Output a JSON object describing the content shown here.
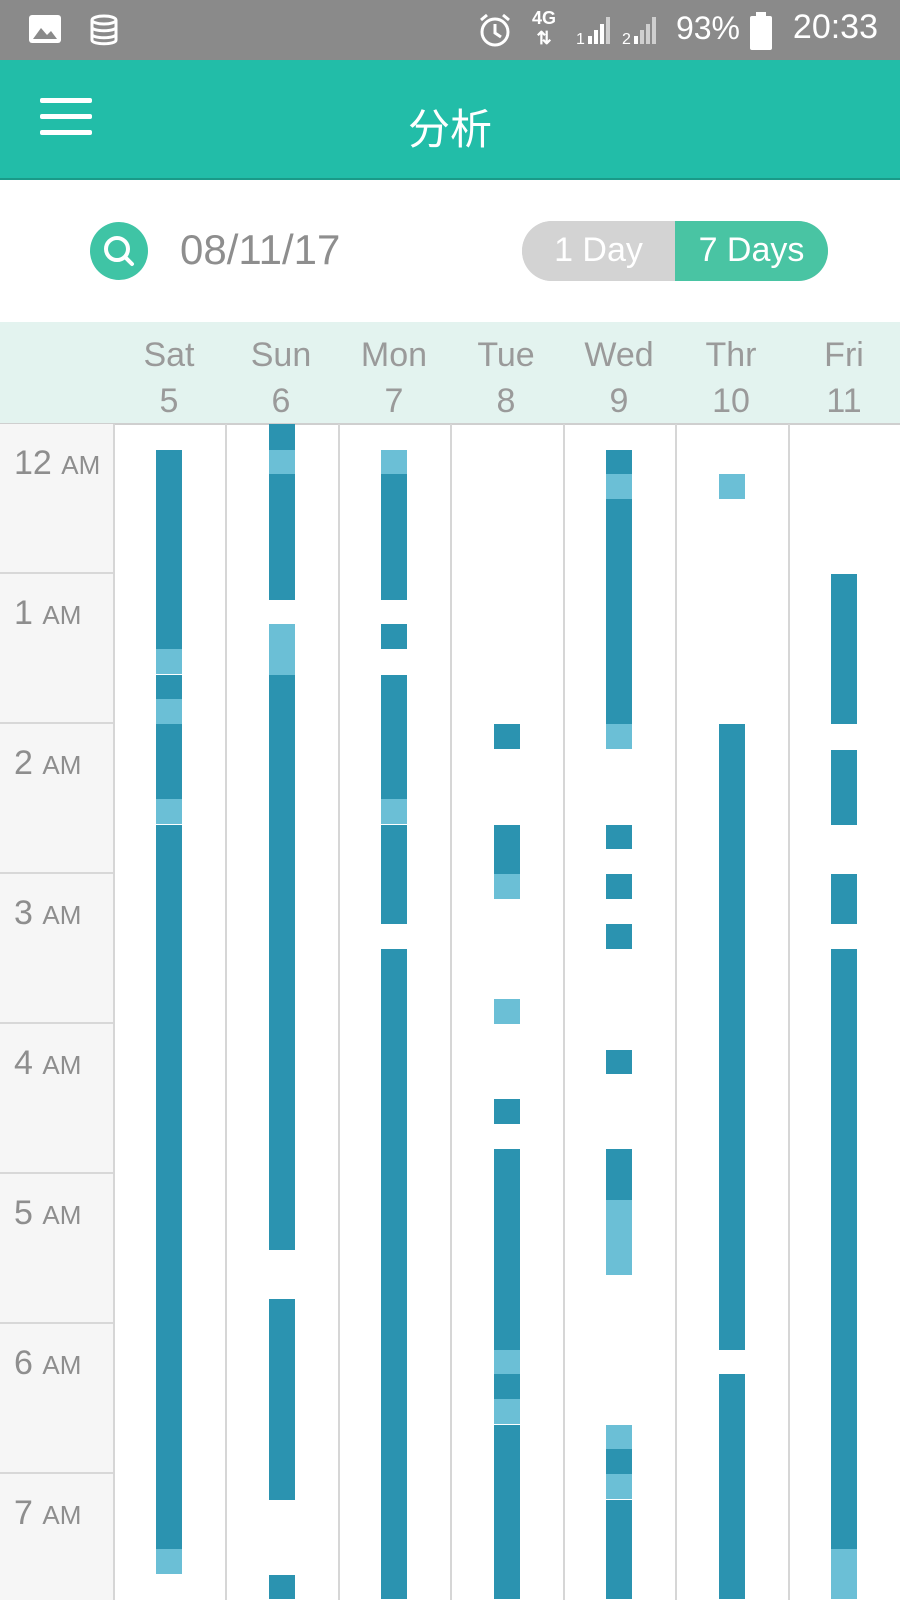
{
  "status_bar": {
    "time": "20:33",
    "battery": "93%",
    "network": "4G",
    "sim1": "1",
    "sim2": "2",
    "icons": [
      "image-icon",
      "database-icon",
      "alarm-icon",
      "network-4g-icon",
      "signal-sim1-icon",
      "signal-sim2-icon",
      "battery-icon"
    ]
  },
  "app_bar": {
    "title": "分析",
    "menu_icon": "hamburger-menu-icon"
  },
  "controls": {
    "date": "08/11/17",
    "search_icon": "search-icon",
    "toggle": {
      "options": [
        "1 Day",
        "7 Days"
      ],
      "selected": "7 Days"
    }
  },
  "days": [
    {
      "name": "Sat",
      "num": "5"
    },
    {
      "name": "Sun",
      "num": "6"
    },
    {
      "name": "Mon",
      "num": "7"
    },
    {
      "name": "Tue",
      "num": "8"
    },
    {
      "name": "Wed",
      "num": "9"
    },
    {
      "name": "Thr",
      "num": "10"
    },
    {
      "name": "Fri",
      "num": "11"
    }
  ],
  "hours": [
    {
      "n": "12",
      "s": "AM"
    },
    {
      "n": "1",
      "s": "AM"
    },
    {
      "n": "2",
      "s": "AM"
    },
    {
      "n": "3",
      "s": "AM"
    },
    {
      "n": "4",
      "s": "AM"
    },
    {
      "n": "5",
      "s": "AM"
    },
    {
      "n": "6",
      "s": "AM"
    },
    {
      "n": "7",
      "s": "AM"
    }
  ],
  "colors": {
    "app_bar": "#22bda8",
    "accent": "#49c4a3",
    "deep_sleep": "#2b93b0",
    "light_sleep": "#6bbfd6",
    "header_bg": "#e3f3ef"
  },
  "chart_data": {
    "type": "timeline",
    "unit": "hours after 12 AM",
    "segments": [
      [
        [
          0.17,
          1.5,
          "d"
        ],
        [
          1.5,
          1.67,
          "l"
        ],
        [
          1.67,
          1.83,
          "d"
        ],
        [
          1.83,
          2.0,
          "l"
        ],
        [
          2.0,
          2.5,
          "d"
        ],
        [
          2.5,
          2.67,
          "l"
        ],
        [
          2.67,
          7.5,
          "d"
        ],
        [
          7.5,
          7.67,
          "l"
        ]
      ],
      [
        [
          0.0,
          0.17,
          "d"
        ],
        [
          0.17,
          0.33,
          "l"
        ],
        [
          0.33,
          1.17,
          "d"
        ],
        [
          1.33,
          1.67,
          "l"
        ],
        [
          1.67,
          5.5,
          "d"
        ],
        [
          5.83,
          7.17,
          "d"
        ],
        [
          7.67,
          7.83,
          "d"
        ]
      ],
      [
        [
          0.17,
          0.33,
          "l"
        ],
        [
          0.33,
          1.17,
          "d"
        ],
        [
          1.33,
          1.5,
          "d"
        ],
        [
          1.67,
          2.5,
          "d"
        ],
        [
          2.5,
          2.67,
          "l"
        ],
        [
          2.67,
          3.33,
          "d"
        ],
        [
          3.5,
          7.83,
          "d"
        ]
      ],
      [
        [
          2.0,
          2.17,
          "d"
        ],
        [
          2.67,
          3.0,
          "d"
        ],
        [
          3.0,
          3.17,
          "l"
        ],
        [
          3.83,
          4.0,
          "l"
        ],
        [
          4.5,
          4.67,
          "d"
        ],
        [
          4.83,
          6.17,
          "d"
        ],
        [
          6.17,
          6.33,
          "l"
        ],
        [
          6.33,
          6.5,
          "d"
        ],
        [
          6.5,
          6.67,
          "l"
        ],
        [
          6.67,
          7.83,
          "d"
        ]
      ],
      [
        [
          0.17,
          0.33,
          "d"
        ],
        [
          0.33,
          0.5,
          "l"
        ],
        [
          0.5,
          2.0,
          "d"
        ],
        [
          2.0,
          2.17,
          "l"
        ],
        [
          2.67,
          2.83,
          "d"
        ],
        [
          3.0,
          3.17,
          "d"
        ],
        [
          3.33,
          3.5,
          "d"
        ],
        [
          4.17,
          4.33,
          "d"
        ],
        [
          4.83,
          5.17,
          "d"
        ],
        [
          5.17,
          5.67,
          "l"
        ],
        [
          6.67,
          6.83,
          "l"
        ],
        [
          6.83,
          7.0,
          "d"
        ],
        [
          7.0,
          7.17,
          "l"
        ],
        [
          7.17,
          7.83,
          "d"
        ]
      ],
      [
        [
          0.33,
          0.5,
          "l"
        ],
        [
          2.0,
          6.17,
          "d"
        ],
        [
          6.33,
          7.83,
          "d"
        ]
      ],
      [
        [
          1.0,
          2.0,
          "d"
        ],
        [
          2.17,
          2.67,
          "d"
        ],
        [
          3.0,
          3.33,
          "d"
        ],
        [
          3.5,
          7.5,
          "d"
        ],
        [
          7.5,
          7.83,
          "l"
        ]
      ]
    ]
  }
}
